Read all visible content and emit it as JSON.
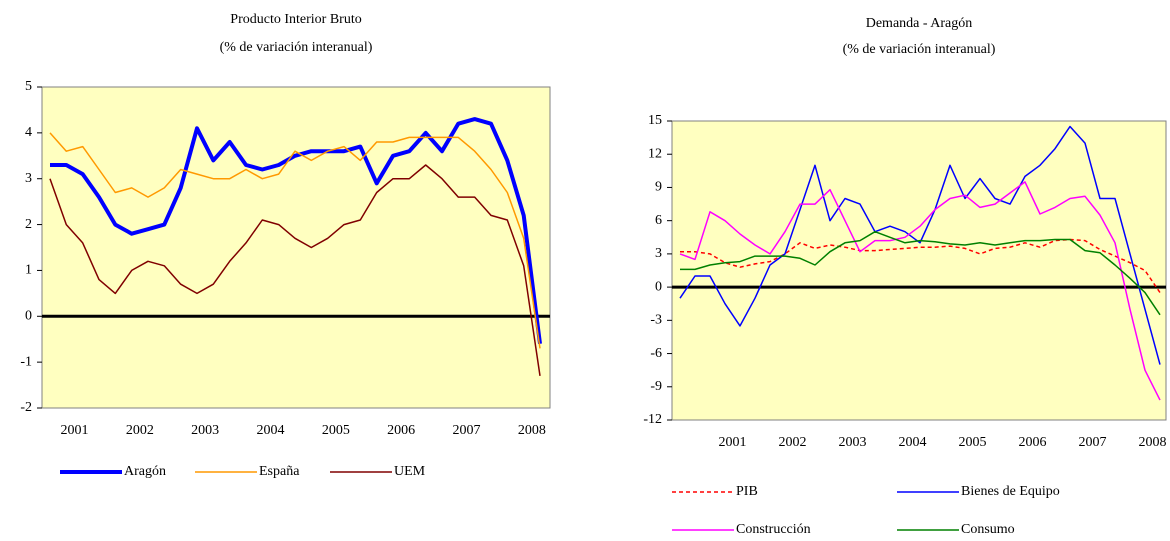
{
  "chart_data": [
    {
      "type": "line",
      "title": "Producto Interior Bruto",
      "subtitle": "(% de variación interanual)",
      "categories": [
        null,
        null,
        "2001",
        null,
        null,
        null,
        "2002",
        null,
        null,
        null,
        "2003",
        null,
        null,
        null,
        "2004",
        null,
        null,
        null,
        "2005",
        null,
        null,
        null,
        "2006",
        null,
        null,
        null,
        "2007",
        null,
        null,
        null,
        "2008"
      ],
      "series": [
        {
          "name": "Aragón",
          "color": "#0000ff",
          "width": 4,
          "values": [
            3.3,
            3.3,
            3.1,
            2.6,
            2.0,
            1.8,
            1.9,
            2.0,
            2.8,
            4.1,
            3.4,
            3.8,
            3.3,
            3.2,
            3.3,
            3.5,
            3.6,
            3.6,
            3.6,
            3.7,
            2.9,
            3.5,
            3.6,
            4.0,
            3.6,
            4.2,
            4.3,
            4.2,
            3.4,
            2.2,
            -0.6
          ]
        },
        {
          "name": "España",
          "color": "#ff9900",
          "width": 1.5,
          "values": [
            4.0,
            3.6,
            3.7,
            3.2,
            2.7,
            2.8,
            2.6,
            2.8,
            3.2,
            3.1,
            3.0,
            3.0,
            3.2,
            3.0,
            3.1,
            3.6,
            3.4,
            3.6,
            3.7,
            3.4,
            3.8,
            3.8,
            3.9,
            3.9,
            3.9,
            3.9,
            3.6,
            3.2,
            2.7,
            1.7,
            -0.7
          ]
        },
        {
          "name": "UEM",
          "color": "#800000",
          "width": 1.5,
          "values": [
            3.0,
            2.0,
            1.6,
            0.8,
            0.5,
            1.0,
            1.2,
            1.1,
            0.7,
            0.5,
            0.7,
            1.2,
            1.6,
            2.1,
            2.0,
            1.7,
            1.5,
            1.7,
            2.0,
            2.1,
            2.7,
            3.0,
            3.0,
            3.3,
            3.0,
            2.6,
            2.6,
            2.2,
            2.1,
            1.1,
            -1.3
          ]
        }
      ],
      "ylim": [
        -2,
        5
      ],
      "yticks": [
        -2,
        -1,
        0,
        1,
        2,
        3,
        4,
        5
      ],
      "legend": "bottom"
    },
    {
      "type": "line",
      "title": "Demanda - Aragón",
      "subtitle": "(% de variación interanual)",
      "categories": [
        null,
        null,
        null,
        null,
        "2001",
        null,
        null,
        null,
        "2002",
        null,
        null,
        null,
        "2003",
        null,
        null,
        null,
        "2004",
        null,
        null,
        null,
        "2005",
        null,
        null,
        null,
        "2006",
        null,
        null,
        null,
        "2007",
        null,
        null,
        null,
        "2008"
      ],
      "series": [
        {
          "name": "PIB",
          "color": "#ff0000",
          "width": 1.5,
          "dashed": true,
          "values": [
            3.2,
            3.2,
            3.0,
            2.2,
            1.8,
            2.1,
            2.3,
            3.0,
            4.0,
            3.5,
            3.8,
            3.6,
            3.3,
            3.3,
            3.4,
            3.5,
            3.6,
            3.6,
            3.7,
            3.5,
            3.0,
            3.5,
            3.6,
            4.0,
            3.6,
            4.2,
            4.3,
            4.2,
            3.4,
            2.8,
            2.2,
            1.5,
            -0.5
          ]
        },
        {
          "name": "Bienes de Equipo",
          "color": "#0000ff",
          "width": 1.5,
          "values": [
            -1,
            1.0,
            1.0,
            -1.5,
            -3.5,
            -1,
            2,
            3,
            7,
            11,
            6,
            8,
            7.5,
            5,
            5.5,
            5,
            4,
            7,
            11,
            8,
            9.8,
            8,
            7.5,
            10,
            11,
            12.5,
            14.5,
            13,
            8,
            8,
            3,
            -2,
            -7
          ]
        },
        {
          "name": "Construcción",
          "color": "#ff00ff",
          "width": 1.5,
          "values": [
            3,
            2.5,
            6.8,
            6,
            4.8,
            3.8,
            3,
            5,
            7.5,
            7.5,
            8.8,
            6,
            3.2,
            4.2,
            4.2,
            4.5,
            5.5,
            7,
            8,
            8.3,
            7.2,
            7.5,
            8.5,
            9.5,
            6.6,
            7.2,
            8,
            8.2,
            6.5,
            4,
            -2,
            -7.5,
            -10.2
          ]
        },
        {
          "name": "Consumo",
          "color": "#008000",
          "width": 1.5,
          "values": [
            1.6,
            1.6,
            2,
            2.2,
            2.3,
            2.8,
            2.8,
            2.8,
            2.6,
            2,
            3.2,
            4,
            4.2,
            5,
            4.5,
            4,
            4.2,
            4.1,
            3.9,
            3.8,
            4,
            3.8,
            4,
            4.2,
            4.2,
            4.3,
            4.3,
            3.3,
            3.1,
            2,
            0.8,
            -0.5,
            -2.5
          ]
        }
      ],
      "ylim": [
        -12,
        15
      ],
      "yticks": [
        -12,
        -9,
        -6,
        -3,
        0,
        3,
        6,
        9,
        12,
        15
      ],
      "legend": "bottom"
    }
  ]
}
